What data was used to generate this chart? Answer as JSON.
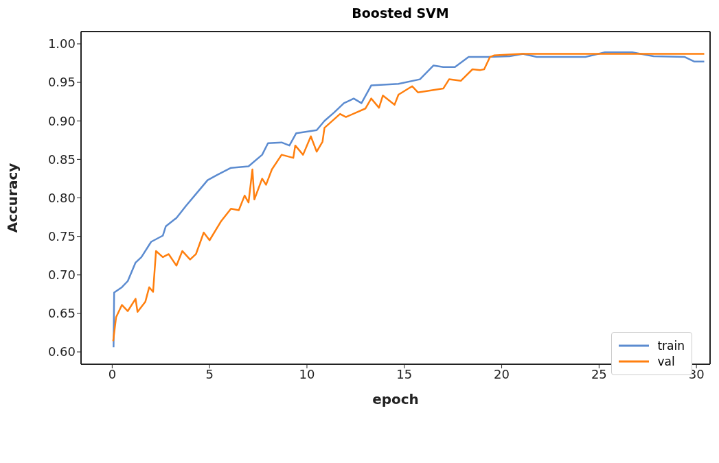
{
  "chart_data": {
    "type": "line",
    "title": "Boosted SVM",
    "xlabel": "epoch",
    "ylabel": "Accuracy",
    "xlim": [
      -1.6,
      30.7
    ],
    "ylim": [
      0.584,
      1.016
    ],
    "xticks": [
      0,
      5,
      10,
      15,
      20,
      25,
      30
    ],
    "yticks": [
      {
        "value": 0.6,
        "label": "0.60"
      },
      {
        "value": 0.65,
        "label": "0.65"
      },
      {
        "value": 0.7,
        "label": "0.70"
      },
      {
        "value": 0.75,
        "label": "0.75"
      },
      {
        "value": 0.8,
        "label": "0.80"
      },
      {
        "value": 0.85,
        "label": "0.85"
      },
      {
        "value": 0.9,
        "label": "0.90"
      },
      {
        "value": 0.95,
        "label": "0.95"
      },
      {
        "value": 1.0,
        "label": "1.00"
      }
    ],
    "grid": false,
    "legend": "bottom right",
    "line_style": "solid",
    "series": [
      {
        "name": "train",
        "color": "#5b8bd0",
        "x": [
          0.07,
          0.1,
          0.5,
          0.8,
          1.2,
          1.5,
          2.0,
          2.6,
          2.75,
          3.3,
          3.8,
          4.3,
          4.9,
          5.4,
          6.1,
          7.0,
          7.7,
          8.0,
          8.7,
          9.1,
          9.45,
          10.5,
          10.9,
          11.4,
          11.9,
          12.4,
          12.8,
          13.3,
          14.7,
          15.8,
          16.5,
          17.0,
          17.6,
          18.3,
          19.3,
          20.4,
          21.1,
          21.8,
          24.3,
          25.3,
          26.7,
          27.8,
          29.4,
          29.9,
          30.4
        ],
        "values": [
          0.606,
          0.677,
          0.684,
          0.692,
          0.716,
          0.723,
          0.743,
          0.751,
          0.763,
          0.774,
          0.79,
          0.805,
          0.823,
          0.83,
          0.839,
          0.841,
          0.856,
          0.871,
          0.872,
          0.868,
          0.884,
          0.888,
          0.9,
          0.911,
          0.923,
          0.929,
          0.923,
          0.946,
          0.948,
          0.954,
          0.972,
          0.97,
          0.97,
          0.983,
          0.983,
          0.984,
          0.987,
          0.983,
          0.983,
          0.989,
          0.989,
          0.984,
          0.983,
          0.977,
          0.977
        ]
      },
      {
        "name": "val",
        "color": "#ff7f0e",
        "x": [
          0.05,
          0.2,
          0.5,
          0.8,
          1.2,
          1.3,
          1.7,
          1.9,
          2.1,
          2.25,
          2.6,
          2.9,
          3.3,
          3.6,
          4.0,
          4.3,
          4.7,
          5.0,
          5.6,
          6.1,
          6.5,
          6.8,
          7.0,
          7.2,
          7.3,
          7.7,
          7.9,
          8.2,
          8.7,
          9.3,
          9.4,
          9.8,
          10.2,
          10.5,
          10.8,
          10.9,
          11.7,
          12.0,
          13.0,
          13.3,
          13.7,
          13.9,
          14.5,
          14.7,
          15.4,
          15.7,
          17.0,
          17.3,
          17.9,
          18.5,
          18.9,
          19.1,
          19.4,
          19.6,
          21.0,
          30.4
        ],
        "values": [
          0.614,
          0.645,
          0.661,
          0.653,
          0.669,
          0.652,
          0.665,
          0.684,
          0.678,
          0.731,
          0.723,
          0.727,
          0.712,
          0.731,
          0.72,
          0.727,
          0.755,
          0.745,
          0.77,
          0.786,
          0.784,
          0.803,
          0.794,
          0.837,
          0.798,
          0.825,
          0.817,
          0.837,
          0.856,
          0.852,
          0.868,
          0.856,
          0.88,
          0.86,
          0.873,
          0.891,
          0.909,
          0.905,
          0.916,
          0.929,
          0.917,
          0.933,
          0.921,
          0.934,
          0.945,
          0.937,
          0.942,
          0.954,
          0.952,
          0.967,
          0.966,
          0.967,
          0.983,
          0.985,
          0.987,
          0.987
        ]
      }
    ]
  }
}
